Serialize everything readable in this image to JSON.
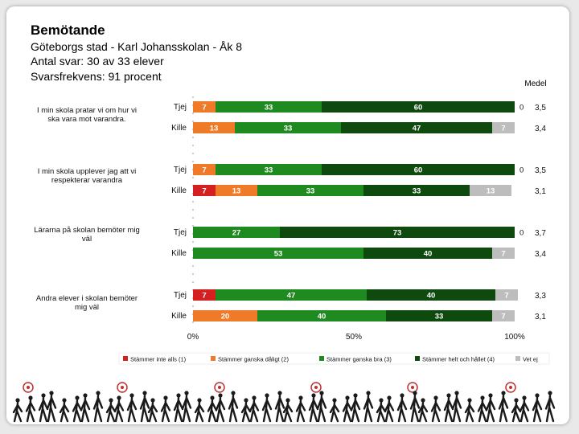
{
  "header": {
    "title": "Bemötande",
    "subtitle_lines": [
      "Göteborgs stad - Karl Johansskolan - Åk 8",
      "Antal svar: 30 av 33 elever",
      "Svarsfrekvens: 91 procent"
    ]
  },
  "chart_data": {
    "type": "bar",
    "stacked": true,
    "orientation": "horizontal",
    "value_unit": "percent",
    "mean_header": "Medel",
    "xlim": [
      0,
      100
    ],
    "x_ticks": [
      "0%",
      "50%",
      "100%"
    ],
    "legend": {
      "placement": "bottom",
      "entries": [
        "Stämmer inte alls (1)",
        "Stämmer ganska dåligt (2)",
        "Stämmer ganska bra (3)",
        "Stämmer helt och hållet (4)",
        "Vet ej"
      ]
    },
    "colors": [
      "#d42020",
      "#ef7a28",
      "#1f8a1f",
      "#0e4a0e",
      "#bdbdbd"
    ],
    "questions": [
      {
        "label": "I min skola pratar vi om hur vi ska vara mot varandra.",
        "rows": [
          {
            "group": "Tjej",
            "values": [
              0,
              7,
              33,
              60,
              0
            ],
            "labels": [
              "0",
              "7",
              "33",
              "60",
              "0"
            ],
            "mean": "3,5"
          },
          {
            "group": "Kille",
            "values": [
              0,
              13,
              33,
              47,
              7
            ],
            "labels": [
              "0",
              "13",
              "33",
              "47",
              "7"
            ],
            "mean": "3,4"
          }
        ]
      },
      {
        "label": "I min skola upplever jag att vi respekterar varandra",
        "rows": [
          {
            "group": "Tjej",
            "values": [
              0,
              7,
              33,
              60,
              0
            ],
            "labels": [
              "0",
              "7",
              "33",
              "60",
              "0"
            ],
            "mean": "3,5"
          },
          {
            "group": "Kille",
            "values": [
              7,
              13,
              33,
              33,
              13
            ],
            "labels": [
              "7",
              "13",
              "33",
              "33",
              "13"
            ],
            "mean": "3,1"
          }
        ]
      },
      {
        "label": "Lärarna på skolan bemöter mig väl",
        "rows": [
          {
            "group": "Tjej",
            "values": [
              0,
              0,
              27,
              73,
              0
            ],
            "labels": [
              "0",
              "",
              "27",
              "73",
              "0"
            ],
            "mean": "3,7"
          },
          {
            "group": "Kille",
            "values": [
              0,
              0,
              53,
              40,
              7
            ],
            "labels": [
              "0",
              "",
              "53",
              "40",
              "7"
            ],
            "mean": "3,4"
          }
        ]
      },
      {
        "label": "Andra elever i skolan bemöter mig väl",
        "rows": [
          {
            "group": "Tjej",
            "values": [
              7,
              0,
              47,
              40,
              7
            ],
            "labels": [
              "7",
              "0",
              "47",
              "40",
              "7"
            ],
            "mean": "3,3"
          },
          {
            "group": "Kille",
            "values": [
              0,
              20,
              40,
              33,
              7
            ],
            "labels": [
              "0",
              "20",
              "40",
              "33",
              "7"
            ],
            "mean": "3,1"
          }
        ]
      }
    ]
  }
}
